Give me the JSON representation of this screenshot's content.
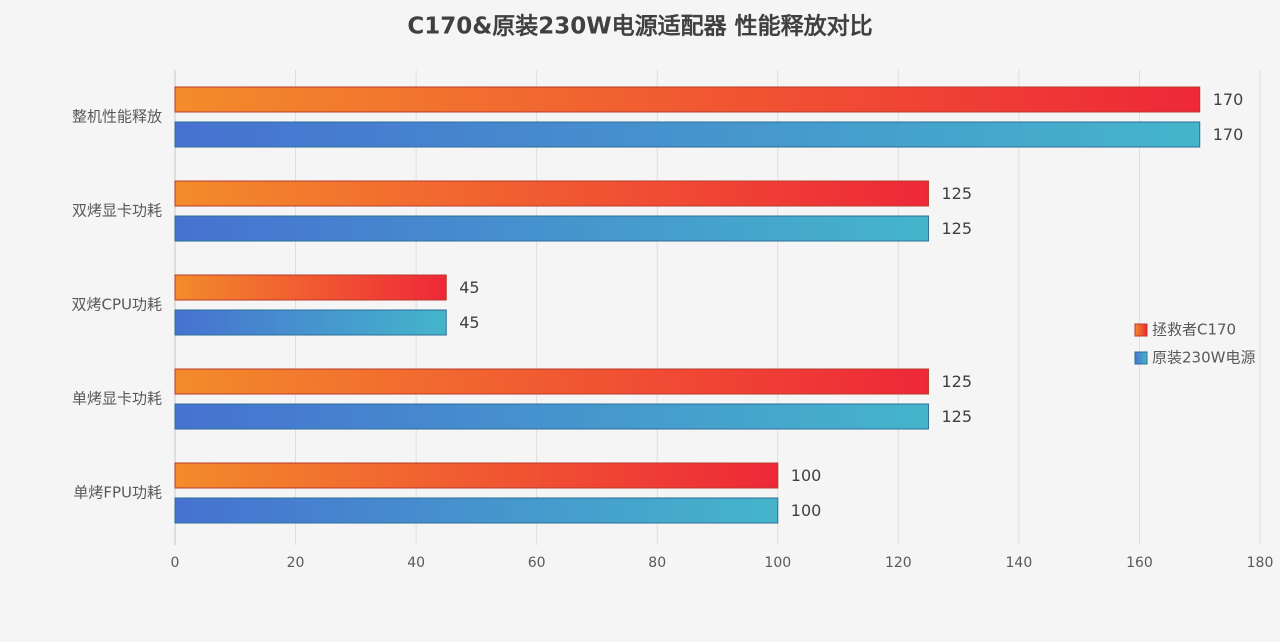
{
  "chart_data": {
    "type": "hbar",
    "title": "C170&原装230W电源适配器 性能释放对比",
    "categories": [
      "整机性能释放",
      "双烤显卡功耗",
      "双烤CPU功耗",
      "单烤显卡功耗",
      "单烤FPU功耗"
    ],
    "series": [
      {
        "name": "拯救者C170",
        "color": [
          "#f38b2b",
          "#ee2838"
        ],
        "values": [
          170,
          125,
          45,
          125,
          100
        ]
      },
      {
        "name": "原装230W电源",
        "color": [
          "#4672d0",
          "#45b5cb"
        ],
        "values": [
          170,
          125,
          45,
          125,
          100
        ]
      }
    ],
    "xlim": [
      0,
      180
    ],
    "xticks": [
      0,
      20,
      40,
      60,
      80,
      100,
      120,
      140,
      160,
      180
    ],
    "grid": true,
    "legend": "right"
  }
}
